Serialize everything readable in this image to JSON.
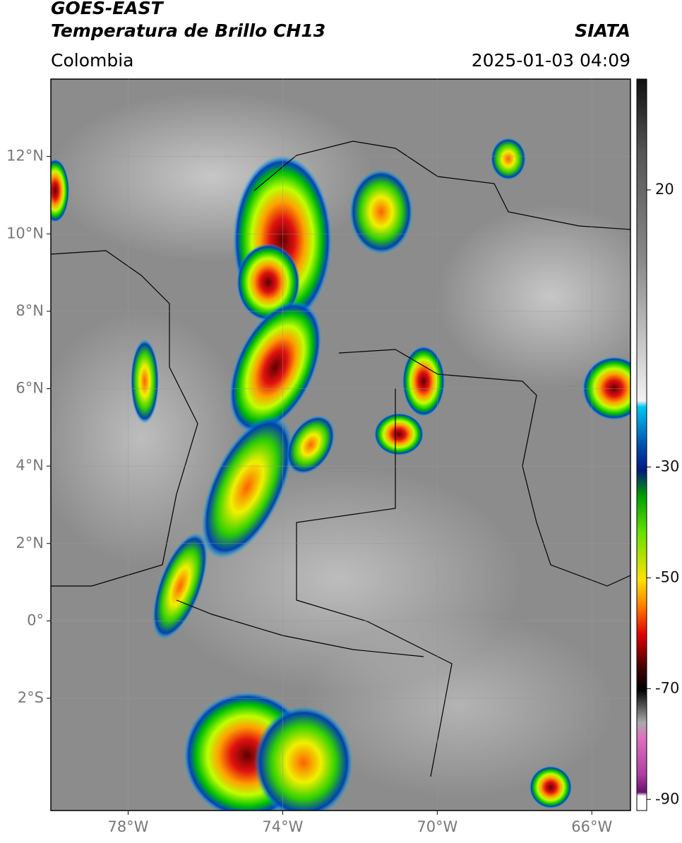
{
  "header": {
    "satellite": "GOES-EAST",
    "product": "Temperatura de Brillo CH13",
    "region": "Colombia",
    "source": "SIATA",
    "datetime": "2025-01-03 04:09"
  },
  "map": {
    "xlim": [
      -80,
      -65
    ],
    "ylim": [
      -4.9,
      14
    ],
    "xticks": [
      {
        "value": -78,
        "label": "78°W"
      },
      {
        "value": -74,
        "label": "74°W"
      },
      {
        "value": -70,
        "label": "70°W"
      },
      {
        "value": -66,
        "label": "66°W"
      }
    ],
    "yticks": [
      {
        "value": 12,
        "label": "12°N"
      },
      {
        "value": 10,
        "label": "10°N"
      },
      {
        "value": 8,
        "label": "8°N"
      },
      {
        "value": 6,
        "label": "6°N"
      },
      {
        "value": 4,
        "label": "4°N"
      },
      {
        "value": 2,
        "label": "2°N"
      },
      {
        "value": 0,
        "label": "0°"
      },
      {
        "value": -2,
        "label": "2°S"
      }
    ]
  },
  "colorbar": {
    "lim": [
      -92,
      40
    ],
    "ticks": [
      20,
      -30,
      -50,
      -70,
      -90
    ]
  }
}
